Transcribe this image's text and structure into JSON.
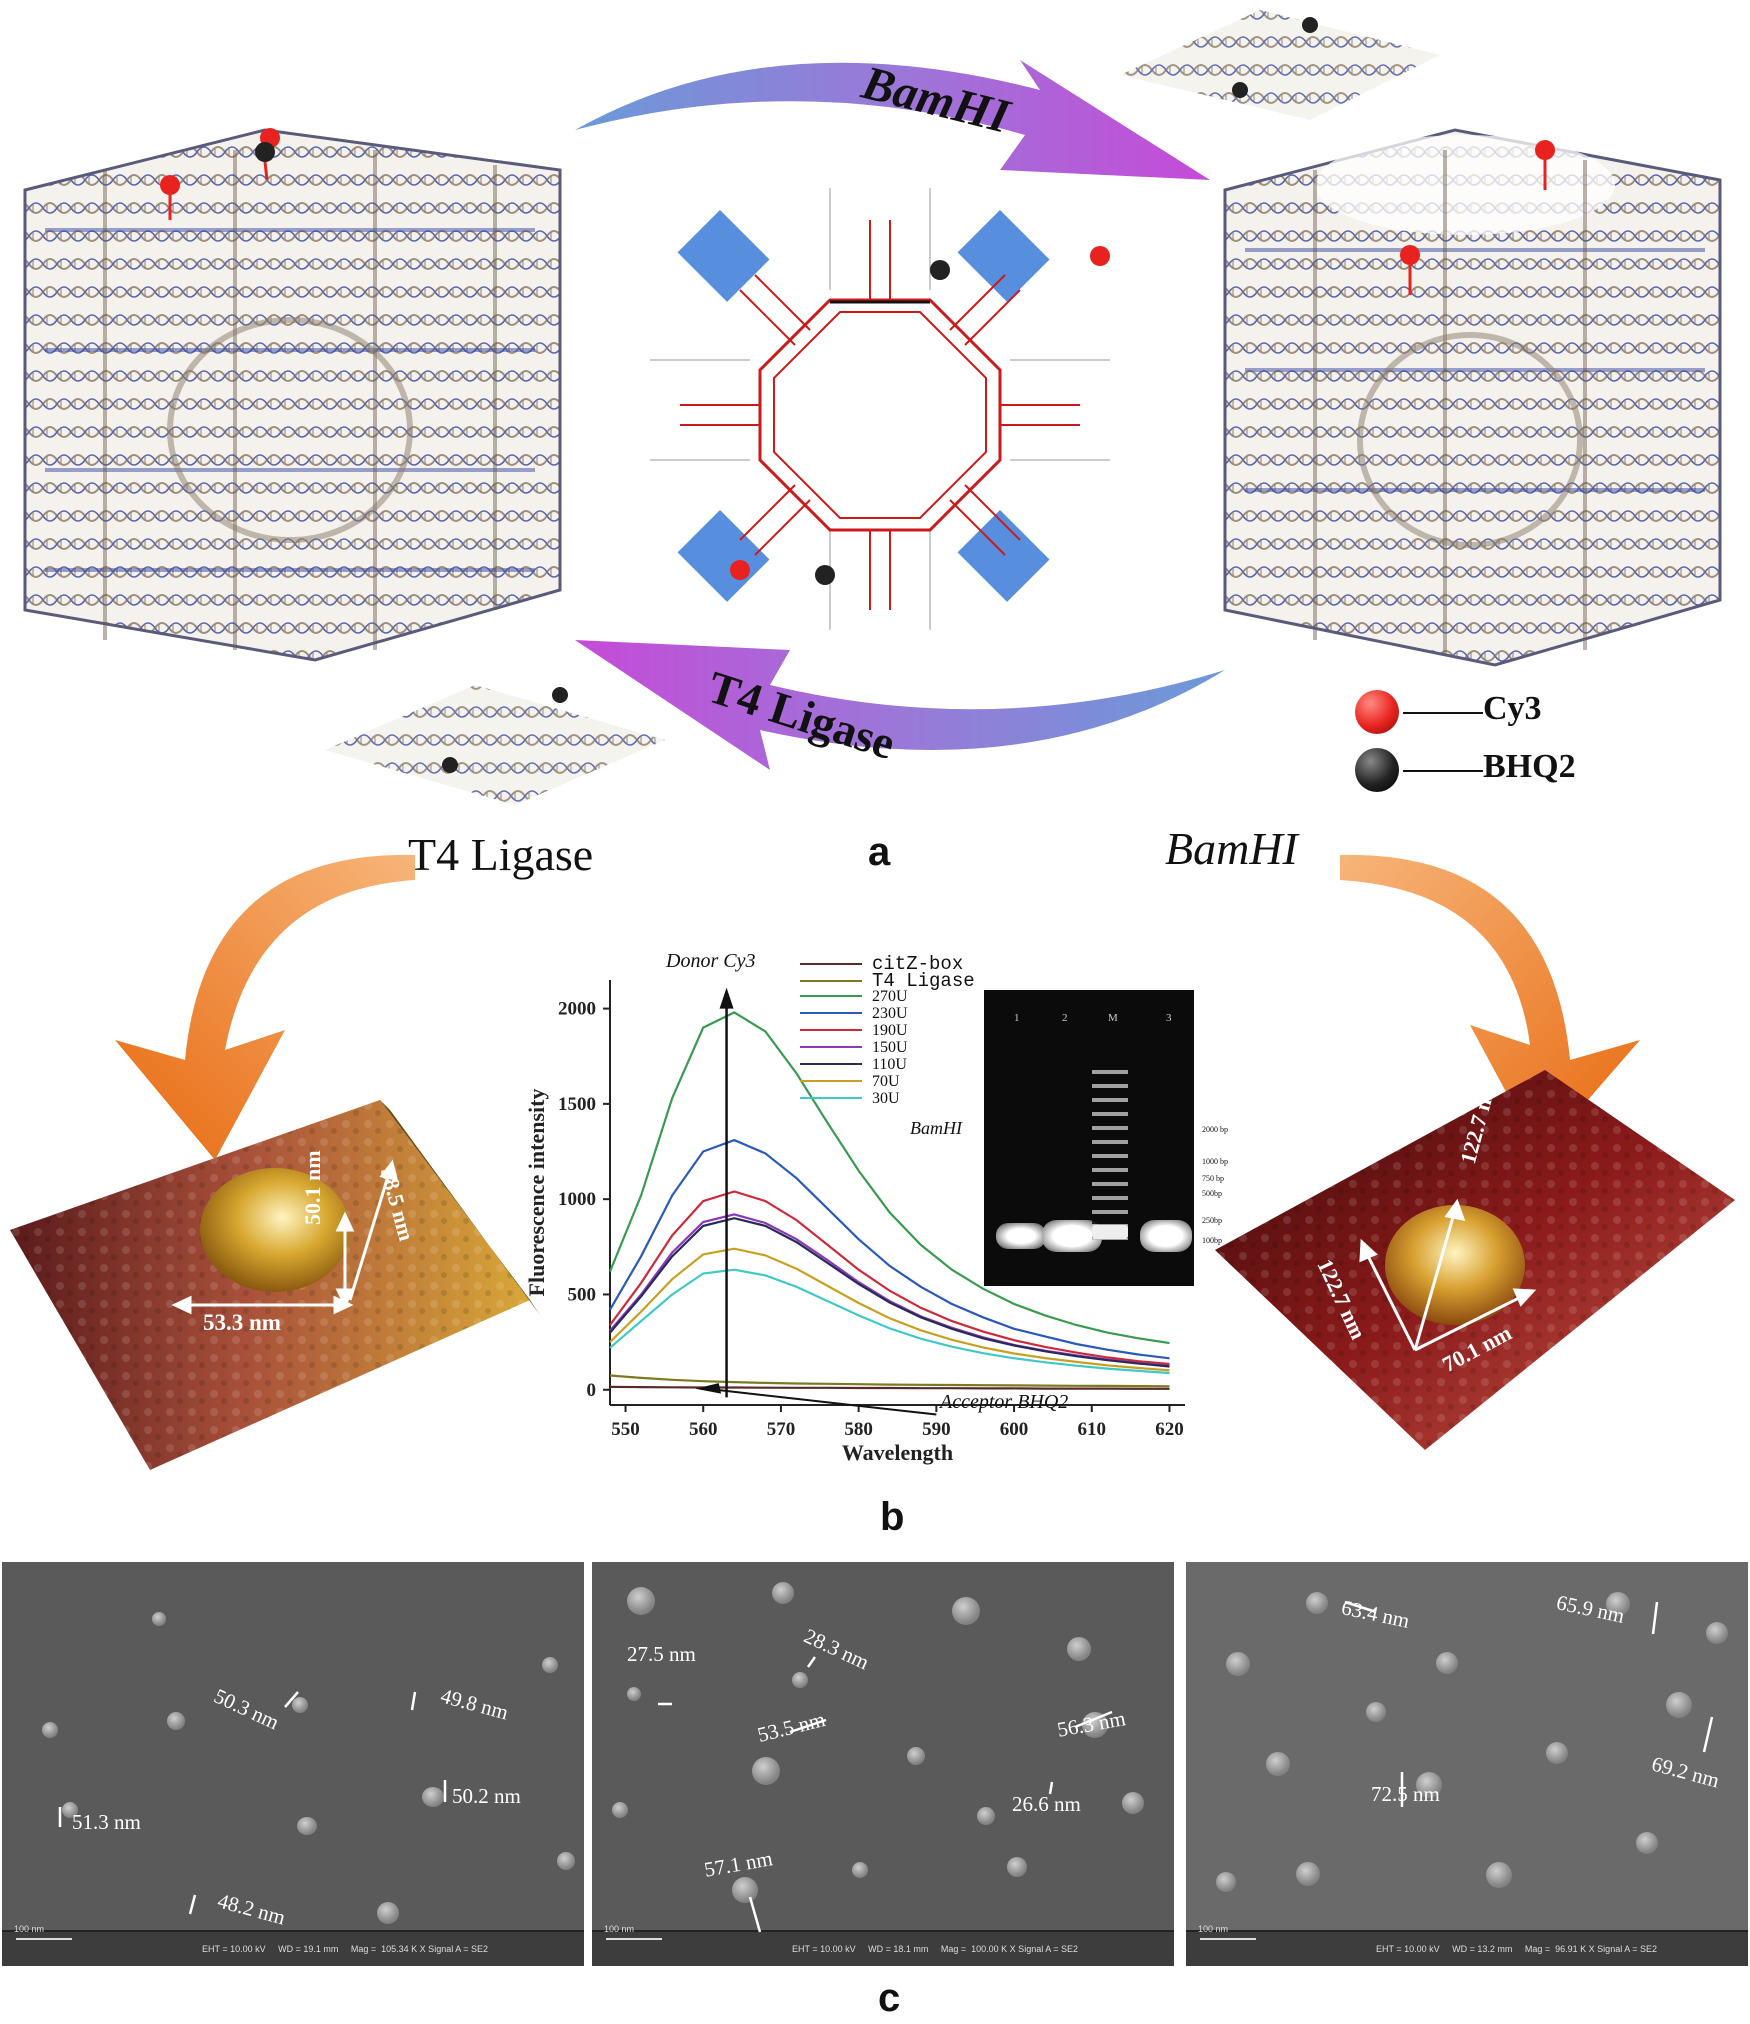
{
  "panel_a": {
    "top_arrow_label": "BamHI",
    "bottom_arrow_label": "T4 Ligase",
    "legend": [
      {
        "label": "Cy3",
        "color": "#e8231f"
      },
      {
        "label": "BHQ2",
        "color": "#222222"
      }
    ],
    "letter": "a"
  },
  "panel_b": {
    "left_enzyme": "T4 Ligase",
    "right_enzyme": "BamHI",
    "letter": "b",
    "afm_left": {
      "width": "53.3 nm",
      "height": "50.1 nm",
      "depth": "58.5 nm"
    },
    "afm_right": {
      "top": "122.7 nm",
      "left": "122.7 nm",
      "right": "70.1 nm"
    },
    "donor_label": "Donor Cy3",
    "acceptor_label": "Acceptor BHQ2",
    "gel": {
      "lanes": [
        "1",
        "2",
        "M",
        "3"
      ],
      "markers": [
        "2000 bp",
        "1000 bp",
        "750 bp",
        "500bp",
        "250bp",
        "100bp"
      ]
    }
  },
  "chart_data": {
    "type": "line",
    "xlabel": "Wavelength",
    "ylabel": "Fluorescence intensity",
    "xlim": [
      548,
      622
    ],
    "ylim": [
      -80,
      2150
    ],
    "xticks": [
      550,
      560,
      570,
      580,
      590,
      600,
      610,
      620
    ],
    "yticks": [
      0,
      500,
      1000,
      1500,
      2000
    ],
    "legend_position": "top-right",
    "x": [
      548,
      552,
      556,
      560,
      564,
      568,
      572,
      576,
      580,
      584,
      588,
      592,
      596,
      600,
      604,
      608,
      612,
      616,
      620
    ],
    "series": [
      {
        "name": "citZ-box",
        "color": "#5a2a2a",
        "values": [
          15,
          14,
          13,
          12,
          12,
          11,
          10,
          10,
          9,
          9,
          8,
          8,
          7,
          7,
          6,
          6,
          6,
          5,
          5
        ]
      },
      {
        "name": "T4 Ligase",
        "color": "#7a7a20",
        "values": [
          75,
          62,
          52,
          45,
          40,
          36,
          33,
          31,
          29,
          27,
          26,
          25,
          24,
          23,
          22,
          21,
          20,
          19,
          18
        ]
      },
      {
        "name": "270U",
        "color": "#3a9a50",
        "values": [
          620,
          1020,
          1530,
          1900,
          1980,
          1880,
          1660,
          1400,
          1150,
          930,
          760,
          630,
          530,
          450,
          390,
          340,
          300,
          270,
          245
        ]
      },
      {
        "name": "230U",
        "color": "#2a5ab8",
        "values": [
          420,
          700,
          1020,
          1250,
          1310,
          1240,
          1110,
          950,
          790,
          650,
          540,
          450,
          380,
          320,
          280,
          240,
          210,
          185,
          165
        ]
      },
      {
        "name": "190U",
        "color": "#cc2a3a",
        "values": [
          340,
          560,
          810,
          990,
          1040,
          990,
          890,
          760,
          630,
          520,
          430,
          360,
          305,
          260,
          225,
          195,
          170,
          150,
          135
        ]
      },
      {
        "name": "150U",
        "color": "#8a3ab8",
        "values": [
          310,
          500,
          720,
          880,
          920,
          875,
          790,
          680,
          565,
          465,
          385,
          325,
          275,
          235,
          205,
          180,
          158,
          140,
          125
        ]
      },
      {
        "name": "110U",
        "color": "#2a2a5a",
        "values": [
          300,
          490,
          700,
          860,
          900,
          860,
          775,
          665,
          555,
          458,
          380,
          320,
          270,
          232,
          202,
          176,
          155,
          138,
          122
        ]
      },
      {
        "name": "70U",
        "color": "#c8a020",
        "values": [
          250,
          410,
          580,
          710,
          740,
          705,
          635,
          545,
          455,
          375,
          312,
          262,
          222,
          190,
          166,
          146,
          128,
          114,
          102
        ]
      },
      {
        "name": "30U",
        "color": "#40c8c8",
        "values": [
          220,
          360,
          500,
          610,
          630,
          600,
          540,
          465,
          390,
          322,
          268,
          226,
          192,
          165,
          144,
          126,
          111,
          99,
          88
        ]
      }
    ],
    "legend_suffix": "BamHI"
  },
  "panel_c": {
    "letter": "c",
    "images": [
      {
        "scale": "100 nm",
        "info": "EHT = 10.00 kV     WD = 19.1 mm     Mag =  105.34 K X Signal A = SE2",
        "measurements": [
          "49.8 nm",
          "50.3 nm",
          "50.2 nm",
          "51.3 nm",
          "48.2 nm"
        ]
      },
      {
        "scale": "100 nm",
        "info": "EHT = 10.00 kV     WD = 18.1 mm     Mag =  100.00 K X Signal A = SE2",
        "measurements": [
          "27.5 nm",
          "28.3 nm",
          "53.5 nm",
          "56.3 nm",
          "26.6 nm",
          "57.1 nm"
        ]
      },
      {
        "scale": "100 nm",
        "info": "EHT = 10.00 kV     WD = 13.2 mm     Mag =  96.91 K X Signal A = SE2",
        "measurements": [
          "63.4 nm",
          "65.9 nm",
          "69.2 nm",
          "72.5 nm"
        ]
      }
    ]
  }
}
